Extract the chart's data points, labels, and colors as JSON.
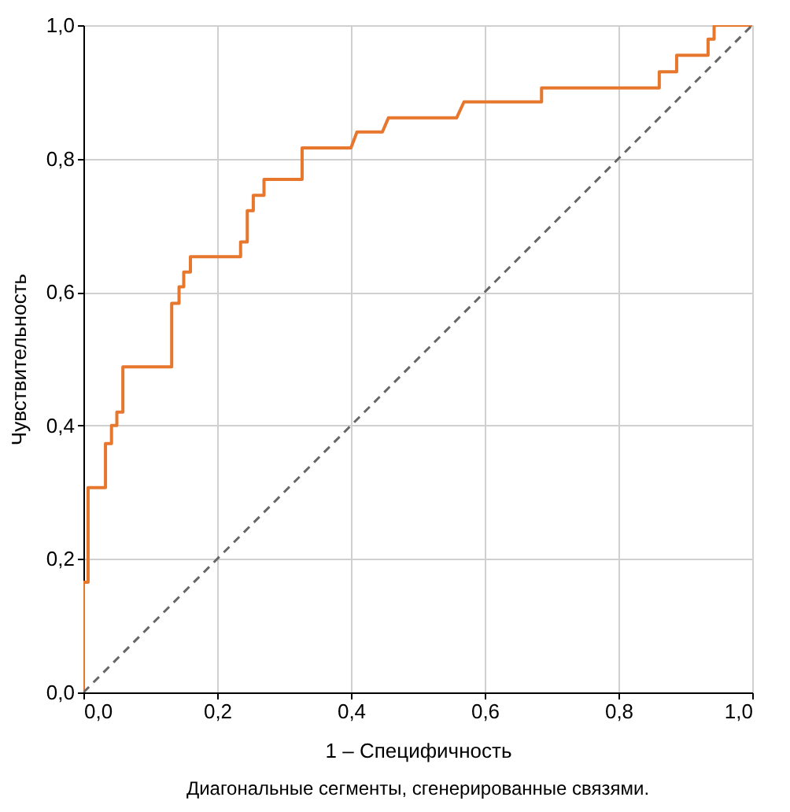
{
  "chart_data": {
    "type": "line",
    "xlabel": "1 – Специфичность",
    "ylabel": "Чувствительность",
    "annotations": [
      "Диагональные сегменты, сгенерированные связями."
    ],
    "xlim": [
      0,
      1
    ],
    "ylim": [
      0,
      1
    ],
    "xticks": [
      {
        "value": 0,
        "label": "0,0"
      },
      {
        "value": 0.2,
        "label": "0,2"
      },
      {
        "value": 0.4,
        "label": "0,4"
      },
      {
        "value": 0.6,
        "label": "0,6"
      },
      {
        "value": 0.8,
        "label": "0,8"
      },
      {
        "value": 1,
        "label": "1,0"
      }
    ],
    "yticks": [
      {
        "value": 0,
        "label": "0,0"
      },
      {
        "value": 0.2,
        "label": "0,2"
      },
      {
        "value": 0.4,
        "label": "0,4"
      },
      {
        "value": 0.6,
        "label": "0,6"
      },
      {
        "value": 0.8,
        "label": "0,8"
      },
      {
        "value": 1,
        "label": "1,0"
      }
    ],
    "grid": true,
    "series": [
      {
        "color": "#e8772e",
        "line_style": "solid",
        "x": [
          0,
          0,
          0.007,
          0.007,
          0.033,
          0.033,
          0.042,
          0.042,
          0.05,
          0.05,
          0.059,
          0.059,
          0.132,
          0.132,
          0.143,
          0.143,
          0.15,
          0.15,
          0.16,
          0.16,
          0.235,
          0.235,
          0.245,
          0.245,
          0.254,
          0.254,
          0.27,
          0.27,
          0.327,
          0.327,
          0.4,
          0.409,
          0.447,
          0.456,
          0.558,
          0.569,
          0.685,
          0.685,
          0.861,
          0.861,
          0.887,
          0.887,
          0.934,
          0.934,
          0.943,
          0.943,
          1
        ],
        "values": [
          0,
          0.165,
          0.165,
          0.307,
          0.307,
          0.373,
          0.373,
          0.4,
          0.4,
          0.42,
          0.42,
          0.488,
          0.488,
          0.583,
          0.583,
          0.608,
          0.608,
          0.63,
          0.63,
          0.653,
          0.653,
          0.675,
          0.675,
          0.722,
          0.722,
          0.745,
          0.745,
          0.769,
          0.769,
          0.816,
          0.816,
          0.84,
          0.84,
          0.861,
          0.861,
          0.885,
          0.885,
          0.906,
          0.906,
          0.93,
          0.93,
          0.955,
          0.955,
          0.979,
          0.979,
          1,
          1
        ]
      },
      {
        "color": "#666666",
        "line_style": "dashed",
        "x": [
          0,
          1
        ],
        "values": [
          0,
          1
        ]
      }
    ]
  }
}
